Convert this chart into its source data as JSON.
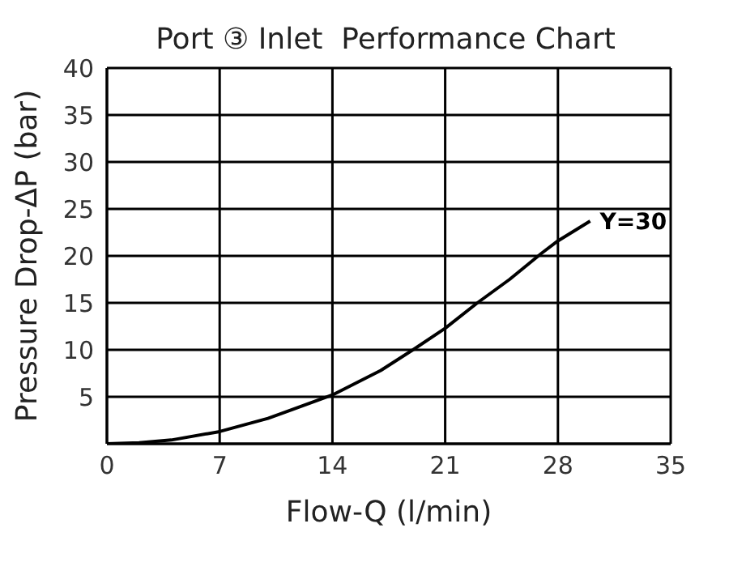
{
  "chart_data": {
    "type": "line",
    "title": "Port ③ Inlet  Performance Chart",
    "xlabel": "Flow-Q (l/min)",
    "ylabel": "Pressure Drop-ΔP (bar)",
    "x": [
      0,
      2,
      4,
      7,
      10,
      14,
      17,
      19,
      21,
      23,
      25,
      27,
      28,
      30
    ],
    "series": [
      {
        "name": "Y=30",
        "color": "#000000",
        "values": [
          0,
          0.1,
          0.4,
          1.3,
          2.7,
          5.2,
          7.8,
          10,
          12.3,
          15,
          17.5,
          20.3,
          21.6,
          23.7
        ]
      }
    ],
    "xlim": [
      0,
      35
    ],
    "xticks": [
      0,
      7,
      14,
      21,
      28,
      35
    ],
    "ylim": [
      0,
      40
    ],
    "yticks": [
      {
        "value": 0,
        "label": null
      },
      5,
      10,
      15,
      20,
      25,
      30,
      35,
      40
    ],
    "grid": true,
    "legend": false,
    "marker": "none",
    "line_style": "solid"
  }
}
